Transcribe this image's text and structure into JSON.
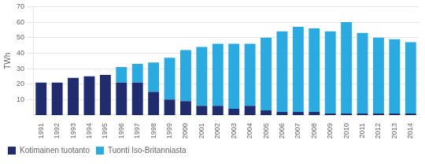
{
  "chart_data": {
    "type": "bar",
    "categories": [
      "1991",
      "1992",
      "1993",
      "1994",
      "1995",
      "1996",
      "1997",
      "1998",
      "1999",
      "2000",
      "2001",
      "2002",
      "2003",
      "2004",
      "2005",
      "2006",
      "2007",
      "2008",
      "2009",
      "2010",
      "2011",
      "2012",
      "2013",
      "2014"
    ],
    "series": [
      {
        "name": "Kotimainen tuotanto",
        "color": "#1f2d6e",
        "values": [
          21,
          21,
          24,
          25,
          26,
          21,
          21,
          15,
          10,
          9,
          6,
          6,
          4,
          6,
          3,
          2,
          2,
          2,
          1,
          1,
          1,
          1,
          1,
          1
        ]
      },
      {
        "name": "Tuonti Iso-Britanniasta",
        "color": "#29abe2",
        "values": [
          0,
          0,
          0,
          0,
          0,
          10,
          12,
          19,
          27,
          33,
          38,
          40,
          42,
          40,
          47,
          52,
          55,
          54,
          53,
          59,
          52,
          49,
          48,
          46
        ]
      }
    ],
    "ylabel": "TWh",
    "ylim": [
      0,
      70
    ],
    "yticks": [
      10,
      20,
      30,
      40,
      50,
      60,
      70
    ],
    "stacked": true,
    "grid": true,
    "legend": "bottom"
  }
}
